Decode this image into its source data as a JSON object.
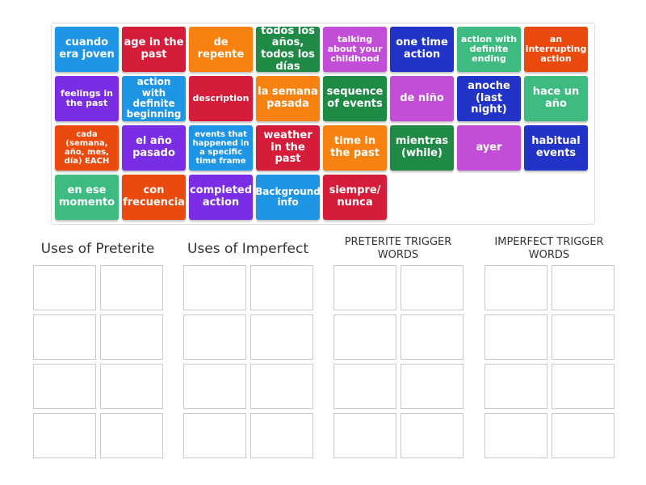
{
  "tiles": [
    {
      "label": "cuando era joven",
      "color": "#1f95e5"
    },
    {
      "label": "age in the past",
      "color": "#d51c3b"
    },
    {
      "label": "de repente",
      "color": "#f7820f"
    },
    {
      "label": "todos los años, todos los días",
      "color": "#1f8a46"
    },
    {
      "label": "talking about your childhood",
      "color": "#c24ed8"
    },
    {
      "label": "one time action",
      "color": "#2234c8"
    },
    {
      "label": "action with definite ending",
      "color": "#3dbb80"
    },
    {
      "label": "an interrupting action",
      "color": "#ea4a0e"
    },
    {
      "label": "feelings in the past",
      "color": "#7a2de4"
    },
    {
      "label": "action with definite beginning",
      "color": "#1f95e5"
    },
    {
      "label": "description",
      "color": "#d51c3b"
    },
    {
      "label": "la semana pasada",
      "color": "#f7820f"
    },
    {
      "label": "sequence of events",
      "color": "#1f8a46"
    },
    {
      "label": "de niño",
      "color": "#c24ed8"
    },
    {
      "label": "anoche (last night)",
      "color": "#2234c8"
    },
    {
      "label": "hace un año",
      "color": "#3dbb80"
    },
    {
      "label": "cada (semana, año, mes, día) EACH",
      "color": "#ea4a0e"
    },
    {
      "label": "el año pasado",
      "color": "#7a2de4"
    },
    {
      "label": "events that happened in a specific time frame",
      "color": "#1f95e5"
    },
    {
      "label": "weather in the past",
      "color": "#d51c3b"
    },
    {
      "label": "time in the past",
      "color": "#f7820f"
    },
    {
      "label": "mientras (while)",
      "color": "#1f8a46"
    },
    {
      "label": "ayer",
      "color": "#c24ed8"
    },
    {
      "label": "habitual events",
      "color": "#2234c8"
    },
    {
      "label": "en ese momento",
      "color": "#3dbb80"
    },
    {
      "label": "con frecuencia",
      "color": "#ea4a0e"
    },
    {
      "label": "completed action",
      "color": "#7a2de4"
    },
    {
      "label": "Background info",
      "color": "#1f95e5"
    },
    {
      "label": "siempre/ nunca",
      "color": "#d51c3b"
    }
  ],
  "groups": [
    {
      "title": "Uses of Preterite",
      "style": "big"
    },
    {
      "title": "Uses of Imperfect",
      "style": "big"
    },
    {
      "title": "PRETERITE TRIGGER WORDS",
      "style": "small"
    },
    {
      "title": "IMPERFECT TRIGGER WORDS",
      "style": "small"
    }
  ]
}
